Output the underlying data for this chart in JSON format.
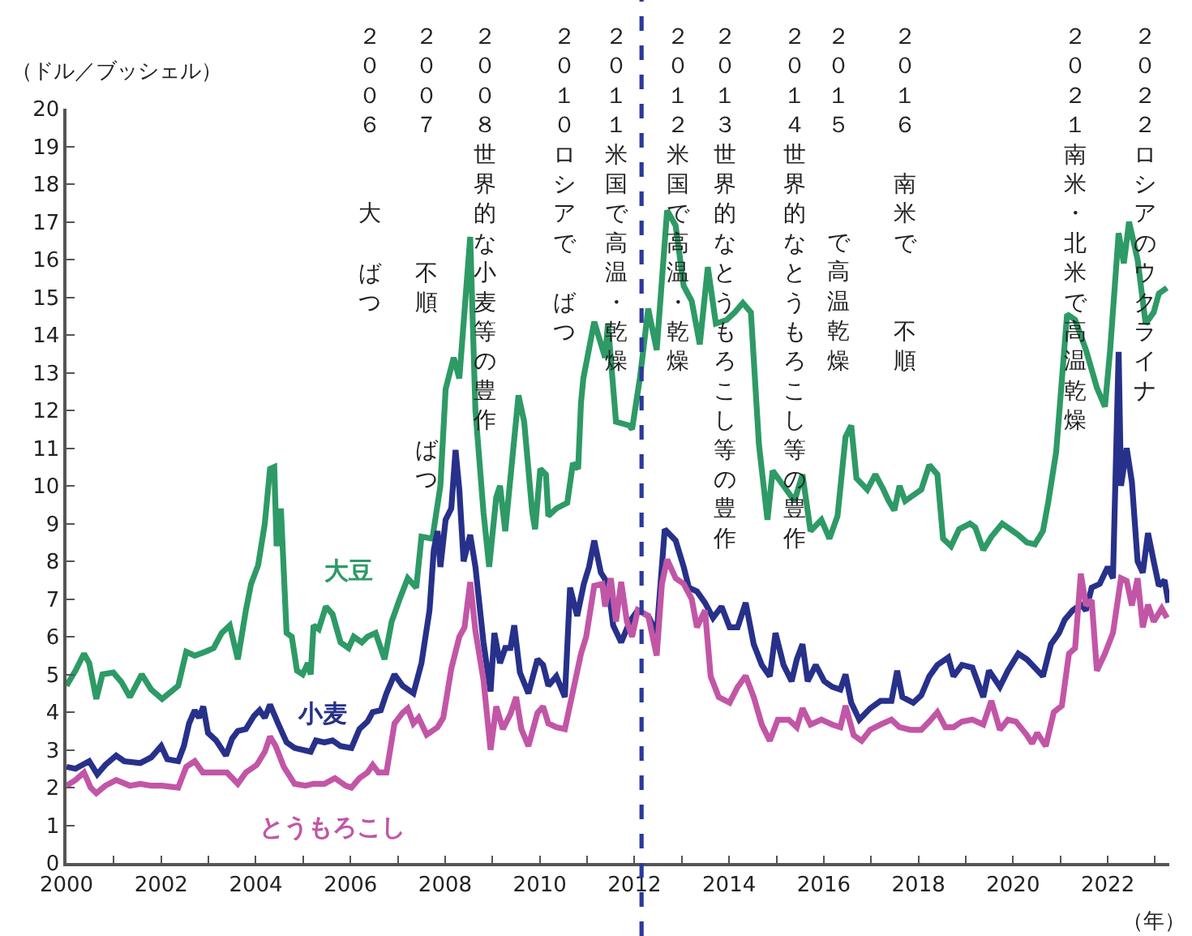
{
  "chart_data": {
    "type": "line",
    "ylabel": "（ドル／ブッシェル）",
    "xlabel": "（年）",
    "xlim": [
      2000,
      2023.3
    ],
    "xticks": [
      2000,
      {
        "value": 2001,
        "label": null
      },
      2002,
      {
        "value": 2003,
        "label": null
      },
      2004,
      {
        "value": 2005,
        "label": null
      },
      2006,
      {
        "value": 2007,
        "label": null
      },
      2008,
      {
        "value": 2009,
        "label": null
      },
      2010,
      {
        "value": 2011,
        "label": null
      },
      2012,
      {
        "value": 2013,
        "label": null
      },
      2014,
      {
        "value": 2015,
        "label": null
      },
      2016,
      {
        "value": 2017,
        "label": null
      },
      2018,
      {
        "value": 2019,
        "label": null
      },
      2020,
      {
        "value": 2021,
        "label": null
      },
      2022,
      {
        "value": 2023,
        "label": null
      }
    ],
    "ylim": [
      0,
      20
    ],
    "yticks": [
      0,
      1,
      2,
      3,
      4,
      5,
      6,
      7,
      8,
      9,
      10,
      11,
      12,
      13,
      14,
      15,
      16,
      17,
      18,
      19,
      20
    ],
    "marker": "none",
    "line_style": "solid",
    "ref_lines": [
      {
        "axis": "x",
        "value": 2012.15,
        "color": "#2b3a9c",
        "line_style": "dashed"
      }
    ],
    "annotations": [
      "２００６",
      "大",
      "ばつ",
      "２００７",
      "不順",
      "ばつ",
      "２００８世界的な小麦等の豊作",
      "２０１０ロシアで",
      "ばつ",
      "２０１１米国で高温・乾燥",
      "２０１２米国で高温・乾燥",
      "２０１３世界的なとうもろこし等の豊作",
      "２０１４世界的なとうもろこし等の豊作",
      "２０１５",
      "で高温乾燥",
      "２０１６",
      "南米で",
      "不順",
      "２０２１南米・北米で高温乾燥",
      "２０２２ロシアのウクライナ"
    ],
    "series": [
      {
        "name": "大豆",
        "color": "#2e9a66",
        "x": [
          2000.0,
          2000.19,
          2000.37,
          2000.48,
          2000.63,
          2000.76,
          2000.99,
          2001.16,
          2001.34,
          2001.59,
          2001.79,
          2002.02,
          2002.36,
          2002.53,
          2002.71,
          2002.93,
          2003.11,
          2003.28,
          2003.45,
          2003.62,
          2003.79,
          2003.9,
          2004.05,
          2004.19,
          2004.3,
          2004.39,
          2004.44,
          2004.53,
          2004.65,
          2004.76,
          2004.87,
          2004.99,
          2005.1,
          2005.16,
          2005.22,
          2005.33,
          2005.48,
          2005.62,
          2005.79,
          2005.96,
          2006.07,
          2006.24,
          2006.36,
          2006.53,
          2006.72,
          2006.87,
          2007.04,
          2007.21,
          2007.39,
          2007.5,
          2007.73,
          2007.9,
          2008.01,
          2008.18,
          2008.3,
          2008.53,
          2008.64,
          2008.81,
          2008.93,
          2009.08,
          2009.16,
          2009.27,
          2009.55,
          2009.67,
          2009.84,
          2009.9,
          2010.01,
          2010.13,
          2010.18,
          2010.35,
          2010.58,
          2010.7,
          2010.81,
          2010.87,
          2010.92,
          2011.15,
          2011.38,
          2011.44,
          2011.61,
          2011.89,
          2011.95,
          2012.12,
          2012.29,
          2012.47,
          2012.69,
          2012.87,
          2013.04,
          2013.21,
          2013.38,
          2013.55,
          2013.72,
          2013.95,
          2014.12,
          2014.29,
          2014.46,
          2014.63,
          2014.81,
          2014.92,
          2015.15,
          2015.38,
          2015.55,
          2015.72,
          2015.95,
          2016.12,
          2016.29,
          2016.46,
          2016.58,
          2016.69,
          2016.92,
          2017.09,
          2017.26,
          2017.37,
          2017.49,
          2017.6,
          2017.72,
          2017.89,
          2018.06,
          2018.23,
          2018.4,
          2018.52,
          2018.69,
          2018.86,
          2019.09,
          2019.2,
          2019.37,
          2019.54,
          2019.77,
          2019.94,
          2020.11,
          2020.29,
          2020.46,
          2020.63,
          2020.74,
          2020.91,
          2021.14,
          2021.31,
          2021.54,
          2021.77,
          2021.94,
          2022.05,
          2022.23,
          2022.34,
          2022.45,
          2022.63,
          2022.8,
          2022.97,
          2023.08,
          2023.25
        ],
        "values": [
          4.7,
          5.1,
          5.55,
          5.3,
          4.35,
          5.0,
          5.05,
          4.8,
          4.4,
          5.0,
          4.6,
          4.35,
          4.7,
          5.6,
          5.5,
          5.6,
          5.7,
          6.1,
          6.3,
          5.4,
          6.7,
          7.4,
          7.9,
          9.0,
          10.45,
          10.5,
          8.4,
          9.4,
          6.1,
          6.0,
          5.1,
          5.0,
          5.3,
          5.0,
          6.3,
          6.2,
          6.8,
          6.6,
          5.85,
          5.7,
          6.0,
          5.85,
          6.0,
          6.1,
          5.4,
          6.4,
          7.0,
          7.55,
          7.3,
          8.65,
          8.6,
          10.0,
          12.56,
          13.4,
          12.85,
          16.6,
          12.0,
          9.3,
          7.85,
          9.7,
          10.0,
          8.8,
          12.4,
          11.7,
          9.3,
          8.85,
          10.45,
          10.3,
          9.2,
          9.4,
          9.55,
          10.6,
          10.45,
          12.2,
          12.85,
          14.35,
          13.4,
          14.3,
          11.7,
          11.6,
          11.5,
          12.9,
          14.7,
          13.6,
          17.3,
          16.9,
          15.3,
          14.9,
          13.75,
          15.8,
          14.3,
          14.4,
          14.6,
          14.85,
          14.6,
          11.1,
          9.1,
          10.4,
          10.0,
          9.6,
          10.3,
          8.8,
          9.1,
          8.6,
          9.2,
          11.3,
          11.6,
          10.2,
          9.9,
          10.3,
          9.9,
          9.6,
          9.35,
          10.0,
          9.6,
          9.75,
          9.9,
          10.55,
          10.3,
          8.6,
          8.4,
          8.85,
          9.0,
          8.9,
          8.3,
          8.65,
          9.0,
          8.85,
          8.7,
          8.5,
          8.45,
          8.8,
          9.55,
          10.9,
          14.55,
          14.4,
          13.6,
          12.6,
          12.1,
          13.6,
          16.7,
          15.9,
          17.0,
          16.0,
          14.3,
          14.6,
          15.1,
          15.25
        ]
      },
      {
        "name": "小麦",
        "color": "#27318a",
        "x": [
          2000.0,
          2000.19,
          2000.48,
          2000.65,
          2000.82,
          2001.05,
          2001.22,
          2001.56,
          2001.79,
          2002.0,
          2002.13,
          2002.36,
          2002.48,
          2002.59,
          2002.71,
          2002.8,
          2002.89,
          2002.99,
          2003.16,
          2003.37,
          2003.5,
          2003.62,
          2003.79,
          2003.96,
          2004.08,
          2004.19,
          2004.3,
          2004.47,
          2004.65,
          2004.82,
          2004.99,
          2005.16,
          2005.27,
          2005.45,
          2005.62,
          2005.79,
          2006.02,
          2006.19,
          2006.36,
          2006.47,
          2006.64,
          2006.76,
          2006.93,
          2007.1,
          2007.33,
          2007.5,
          2007.67,
          2007.76,
          2007.84,
          2007.9,
          2008.01,
          2008.13,
          2008.22,
          2008.3,
          2008.39,
          2008.53,
          2008.64,
          2008.81,
          2008.96,
          2009.04,
          2009.16,
          2009.27,
          2009.38,
          2009.46,
          2009.58,
          2009.76,
          2009.95,
          2010.07,
          2010.18,
          2010.35,
          2010.53,
          2010.64,
          2010.79,
          2010.93,
          2011.04,
          2011.15,
          2011.29,
          2011.44,
          2011.55,
          2011.72,
          2011.9,
          2012.07,
          2012.29,
          2012.47,
          2012.64,
          2012.87,
          2013.04,
          2013.15,
          2013.32,
          2013.49,
          2013.66,
          2013.84,
          2014.01,
          2014.18,
          2014.35,
          2014.52,
          2014.69,
          2014.86,
          2014.98,
          2015.15,
          2015.32,
          2015.43,
          2015.55,
          2015.66,
          2015.83,
          2016.01,
          2016.18,
          2016.35,
          2016.46,
          2016.58,
          2016.75,
          2016.98,
          2017.2,
          2017.43,
          2017.55,
          2017.66,
          2017.89,
          2018.06,
          2018.23,
          2018.4,
          2018.63,
          2018.74,
          2018.92,
          2019.14,
          2019.37,
          2019.49,
          2019.72,
          2019.89,
          2020.11,
          2020.29,
          2020.46,
          2020.63,
          2020.8,
          2020.97,
          2021.09,
          2021.26,
          2021.43,
          2021.54,
          2021.66,
          2021.83,
          2022.0,
          2022.11,
          2022.23,
          2022.28,
          2022.4,
          2022.51,
          2022.63,
          2022.74,
          2022.85,
          2022.97,
          2023.08,
          2023.2,
          2023.28
        ],
        "values": [
          2.55,
          2.5,
          2.7,
          2.35,
          2.6,
          2.85,
          2.7,
          2.65,
          2.8,
          3.1,
          2.75,
          2.7,
          3.1,
          3.7,
          4.05,
          3.85,
          4.15,
          3.45,
          3.25,
          2.85,
          3.3,
          3.5,
          3.55,
          3.9,
          4.05,
          3.85,
          4.2,
          3.7,
          3.2,
          3.05,
          3.0,
          2.95,
          3.25,
          3.2,
          3.25,
          3.1,
          3.05,
          3.55,
          3.75,
          4.0,
          4.05,
          4.5,
          5.0,
          4.7,
          4.5,
          5.3,
          6.7,
          8.3,
          8.8,
          7.85,
          9.1,
          9.4,
          10.95,
          9.9,
          8.0,
          8.7,
          7.85,
          5.85,
          4.55,
          6.1,
          5.3,
          5.7,
          5.7,
          6.3,
          5.05,
          4.5,
          5.4,
          5.25,
          4.7,
          4.95,
          4.4,
          7.3,
          6.55,
          7.4,
          7.85,
          8.55,
          7.7,
          7.4,
          6.3,
          5.85,
          6.4,
          6.7,
          6.55,
          6.1,
          8.85,
          8.55,
          7.85,
          7.3,
          7.2,
          6.9,
          6.5,
          6.8,
          6.25,
          6.25,
          6.9,
          5.8,
          5.25,
          4.95,
          6.1,
          5.25,
          4.82,
          5.4,
          5.8,
          4.82,
          5.25,
          4.82,
          4.67,
          4.6,
          5.0,
          4.25,
          3.8,
          4.1,
          4.3,
          4.3,
          5.1,
          4.4,
          4.25,
          4.45,
          4.95,
          5.25,
          5.45,
          4.95,
          5.25,
          5.18,
          4.4,
          5.1,
          4.67,
          5.1,
          5.55,
          5.4,
          5.18,
          4.95,
          5.8,
          6.1,
          6.45,
          6.7,
          6.85,
          6.7,
          7.3,
          7.4,
          7.85,
          7.55,
          13.55,
          10.0,
          11.0,
          10.1,
          8.0,
          7.7,
          8.75,
          8.0,
          7.35,
          7.5,
          6.9
        ]
      },
      {
        "name": "とうもろこし",
        "color": "#c256a6",
        "x": [
          2000.0,
          2000.19,
          2000.37,
          2000.51,
          2000.63,
          2000.82,
          2001.05,
          2001.34,
          2001.56,
          2001.79,
          2002.02,
          2002.36,
          2002.53,
          2002.71,
          2002.88,
          2003.11,
          2003.39,
          2003.62,
          2003.79,
          2004.02,
          2004.19,
          2004.3,
          2004.42,
          2004.59,
          2004.82,
          2005.05,
          2005.22,
          2005.45,
          2005.67,
          2005.9,
          2006.02,
          2006.19,
          2006.36,
          2006.47,
          2006.59,
          2006.76,
          2006.93,
          2007.1,
          2007.21,
          2007.33,
          2007.44,
          2007.61,
          2007.84,
          2007.96,
          2008.13,
          2008.3,
          2008.41,
          2008.53,
          2008.64,
          2008.81,
          2008.96,
          2009.08,
          2009.22,
          2009.38,
          2009.5,
          2009.61,
          2009.76,
          2009.95,
          2010.07,
          2010.18,
          2010.35,
          2010.53,
          2010.7,
          2010.87,
          2010.98,
          2011.15,
          2011.32,
          2011.38,
          2011.5,
          2011.61,
          2011.72,
          2011.84,
          2011.95,
          2012.07,
          2012.29,
          2012.47,
          2012.58,
          2012.69,
          2012.87,
          2013.04,
          2013.21,
          2013.32,
          2013.49,
          2013.61,
          2013.78,
          2014.01,
          2014.18,
          2014.35,
          2014.52,
          2014.69,
          2014.86,
          2015.03,
          2015.26,
          2015.43,
          2015.55,
          2015.72,
          2015.95,
          2016.18,
          2016.35,
          2016.46,
          2016.63,
          2016.8,
          2016.98,
          2017.2,
          2017.43,
          2017.6,
          2017.83,
          2018.06,
          2018.23,
          2018.4,
          2018.57,
          2018.74,
          2018.92,
          2019.14,
          2019.37,
          2019.54,
          2019.72,
          2019.89,
          2020.06,
          2020.29,
          2020.4,
          2020.51,
          2020.69,
          2020.86,
          2021.03,
          2021.18,
          2021.31,
          2021.43,
          2021.54,
          2021.66,
          2021.77,
          2021.94,
          2022.11,
          2022.28,
          2022.4,
          2022.51,
          2022.63,
          2022.74,
          2022.85,
          2022.97,
          2023.14,
          2023.25
        ],
        "values": [
          2.05,
          2.2,
          2.4,
          2.0,
          1.85,
          2.05,
          2.2,
          2.05,
          2.1,
          2.05,
          2.05,
          2.0,
          2.55,
          2.7,
          2.4,
          2.4,
          2.4,
          2.1,
          2.4,
          2.6,
          2.95,
          3.35,
          3.1,
          2.55,
          2.1,
          2.05,
          2.1,
          2.1,
          2.25,
          2.05,
          2.0,
          2.25,
          2.4,
          2.6,
          2.4,
          2.4,
          3.7,
          3.98,
          4.1,
          3.7,
          3.85,
          3.4,
          3.6,
          3.85,
          5.15,
          6.0,
          6.25,
          7.45,
          6.15,
          4.85,
          3.0,
          4.15,
          3.55,
          3.95,
          4.4,
          3.55,
          3.1,
          3.98,
          4.15,
          3.7,
          3.6,
          3.55,
          4.55,
          5.55,
          6.0,
          7.35,
          7.4,
          6.8,
          7.55,
          6.4,
          7.45,
          6.4,
          6.0,
          6.7,
          6.55,
          5.5,
          7.4,
          8.05,
          7.55,
          7.4,
          7.0,
          6.25,
          6.7,
          4.95,
          4.4,
          4.25,
          4.67,
          4.96,
          4.4,
          3.67,
          3.24,
          3.8,
          3.8,
          3.6,
          4.1,
          3.67,
          3.8,
          3.67,
          3.6,
          4.17,
          3.39,
          3.24,
          3.53,
          3.67,
          3.8,
          3.6,
          3.53,
          3.53,
          3.75,
          4.0,
          3.6,
          3.6,
          3.75,
          3.8,
          3.67,
          4.3,
          3.53,
          3.8,
          3.75,
          3.39,
          3.17,
          3.45,
          3.1,
          4.0,
          4.17,
          5.55,
          5.7,
          7.67,
          6.83,
          6.97,
          5.1,
          5.55,
          6.1,
          7.55,
          7.48,
          6.83,
          7.55,
          6.25,
          6.85,
          6.4,
          6.75,
          6.5
        ]
      }
    ]
  }
}
